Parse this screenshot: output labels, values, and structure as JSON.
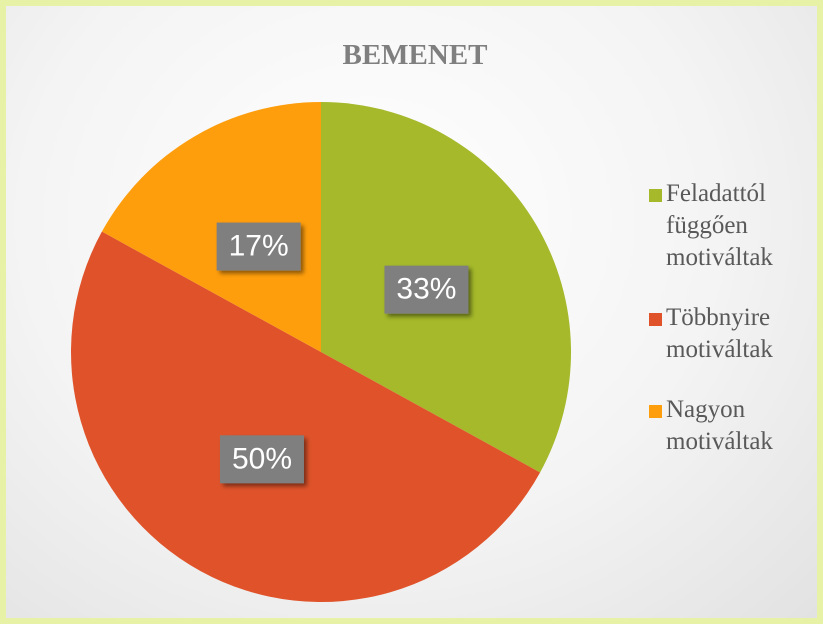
{
  "chart_data": {
    "type": "pie",
    "title": "BEMENET",
    "categories": [
      "Feladattól függően motiváltak",
      "Többnyire motiváltak",
      "Nagyon motiváltak"
    ],
    "values": [
      33,
      50,
      17
    ],
    "value_labels": [
      "33%",
      "50%",
      "17%"
    ],
    "colors": [
      "#a5b92a",
      "#e0532a",
      "#ff9e0c"
    ],
    "legend": "right"
  }
}
